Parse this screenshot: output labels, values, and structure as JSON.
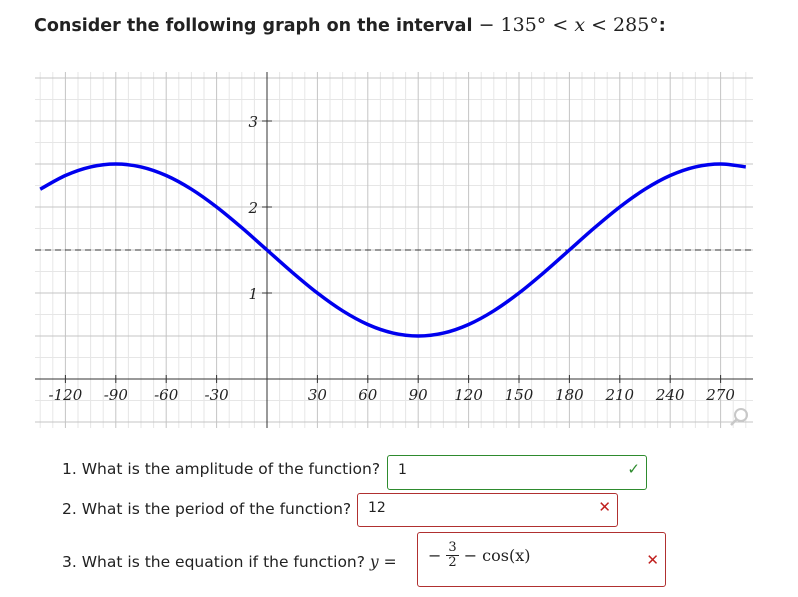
{
  "title": {
    "prefix": "Consider the following graph on the interval",
    "interval": "− 135°  <  x  <  285°",
    "interval_start": "− 135°  < ",
    "interval_var": "x",
    "interval_end": " <  285°",
    "suffix": ":"
  },
  "chart_data": {
    "type": "line",
    "x_ticks": [
      "-120",
      "-90",
      "-60",
      "-30",
      "30",
      "60",
      "90",
      "120",
      "150",
      "180",
      "210",
      "240",
      "270"
    ],
    "y_ticks": [
      "1",
      "2",
      "3"
    ],
    "xlim": [
      -135,
      285
    ],
    "ylim": [
      0,
      3.5
    ],
    "grid": true,
    "midline_y": 1.5,
    "series": [
      {
        "x": [
          -135,
          -120,
          -105,
          -90,
          -75,
          -60,
          -45,
          -30,
          -15,
          0,
          15,
          30,
          45,
          60,
          75,
          90,
          105,
          120,
          135,
          150,
          165,
          180,
          195,
          210,
          225,
          240,
          255,
          270,
          285
        ],
        "y": [
          2.207,
          2.366,
          2.466,
          2.5,
          2.466,
          2.366,
          2.207,
          2.0,
          1.759,
          1.5,
          1.241,
          1.0,
          0.793,
          0.634,
          0.534,
          0.5,
          0.534,
          0.634,
          0.793,
          1.0,
          1.241,
          1.5,
          1.759,
          2.0,
          2.207,
          2.366,
          2.466,
          2.5,
          2.466
        ],
        "color": "#0000ee"
      }
    ]
  },
  "questions": [
    {
      "number": "1.",
      "text": "What is the amplitude of the function?",
      "answer": "1",
      "status": "correct"
    },
    {
      "number": "2.",
      "text": "What is the period of the function?",
      "answer": "12",
      "status": "incorrect"
    },
    {
      "number": "3.",
      "text": "What is the equation if the function?",
      "lhs": "y =",
      "answer": {
        "sign": "−",
        "num": "3",
        "den": "2",
        "rest": "− cos(x)"
      },
      "status": "incorrect"
    }
  ],
  "icons": {
    "check": "✓",
    "cross": "✕",
    "zoom": "magnifier-icon"
  }
}
